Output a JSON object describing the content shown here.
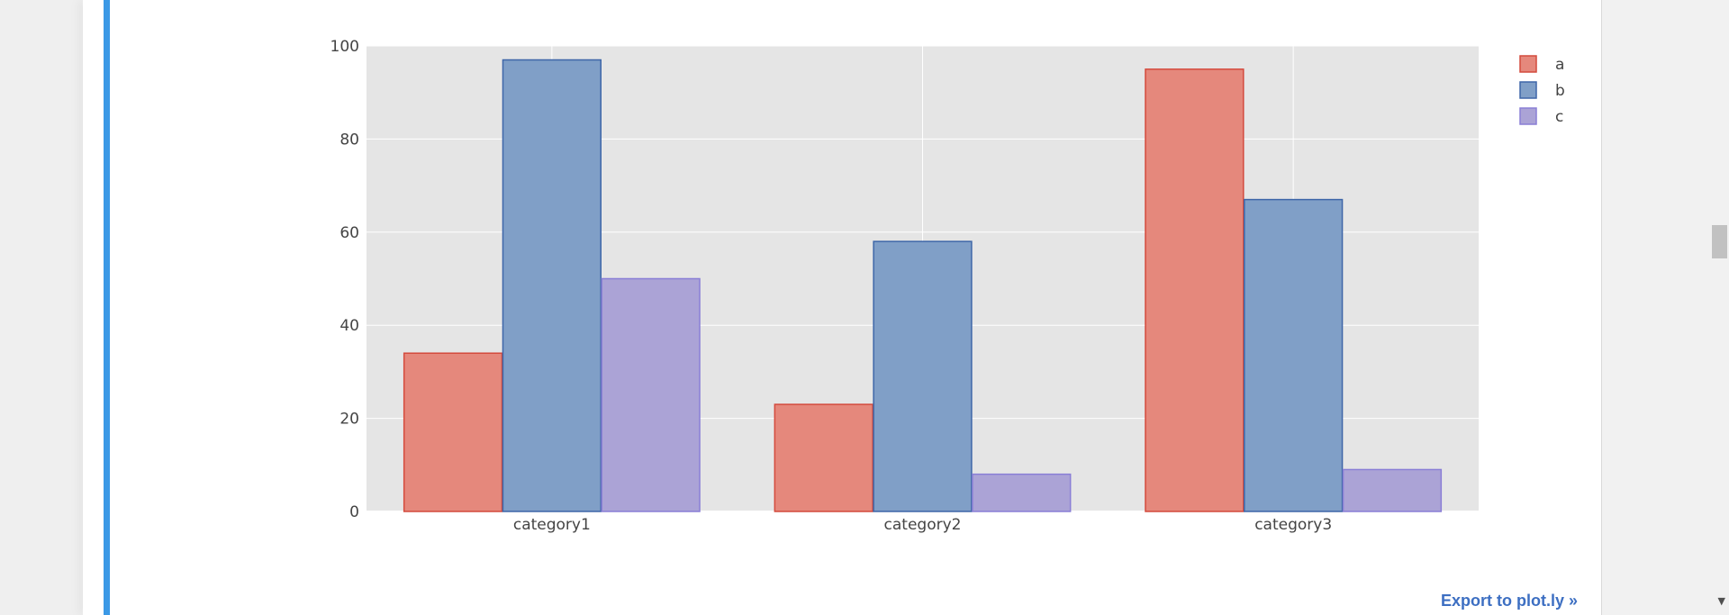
{
  "colors": {
    "accent_bar": "#3b99e6",
    "plot_bg": "#e5e5e5",
    "grid": "#ffffff",
    "link": "#3d6fc2"
  },
  "chart_data": {
    "type": "bar",
    "categories": [
      "category1",
      "category2",
      "category3"
    ],
    "series": [
      {
        "name": "a",
        "values": [
          34,
          23,
          95
        ],
        "fill": "#e5887c",
        "stroke": "#d44a3d"
      },
      {
        "name": "b",
        "values": [
          97,
          58,
          67
        ],
        "fill": "#809fc7",
        "stroke": "#3e66a8"
      },
      {
        "name": "c",
        "values": [
          50,
          8,
          9
        ],
        "fill": "#aba3d6",
        "stroke": "#8a7fd6"
      }
    ],
    "ylim": [
      0,
      100
    ],
    "yticks": [
      0,
      20,
      40,
      60,
      80,
      100
    ],
    "grid": true,
    "legend": "top-right",
    "title": "",
    "xlabel": "",
    "ylabel": ""
  },
  "export_link": "Export to plot.ly »",
  "scrollbar": {
    "arrow_icon": "triangle-down"
  }
}
